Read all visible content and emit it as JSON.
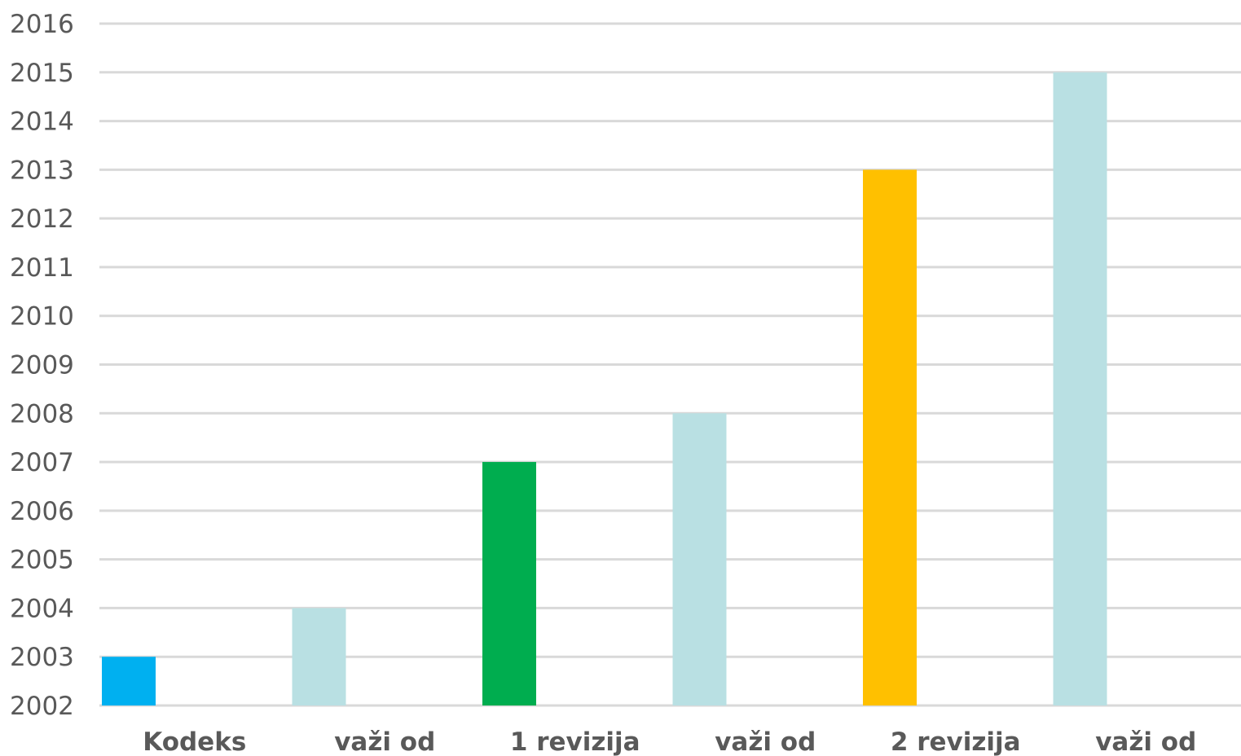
{
  "chart_data": {
    "type": "bar",
    "categories": [
      "Kodeks",
      "važi od",
      "1 revizija",
      "važi od",
      "2 revizija",
      "važi od"
    ],
    "values": [
      2003,
      2004,
      2007,
      2008,
      2013,
      2015
    ],
    "colors": [
      "#00b0f0",
      "#b9e0e3",
      "#00ad4f",
      "#b9e0e3",
      "#ffc000",
      "#b9e0e3"
    ],
    "ylim": [
      2002,
      2016
    ],
    "yticks": [
      "2002",
      "2003",
      "2004",
      "2005",
      "2006",
      "2007",
      "2008",
      "2009",
      "2010",
      "2011",
      "2012",
      "2013",
      "2014",
      "2015",
      "2016"
    ],
    "grid": true,
    "gridColor": "#d9d9d9",
    "xlabel": "",
    "ylabel": ""
  }
}
